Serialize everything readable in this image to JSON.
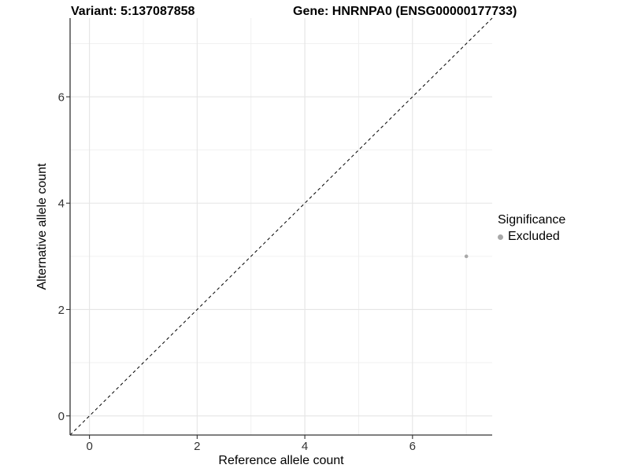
{
  "chart_data": {
    "type": "scatter",
    "title_left": "Variant: 5:137087858",
    "title_right": "Gene: HNRNPA0 (ENSG00000177733)",
    "xlabel": "Reference allele count",
    "ylabel": "Alternative allele count",
    "xlim": [
      -0.36,
      7.48
    ],
    "ylim": [
      -0.36,
      7.48
    ],
    "x_ticks": [
      0,
      2,
      4,
      6
    ],
    "y_ticks": [
      0,
      2,
      4,
      6
    ],
    "minor_grid_x": [
      1,
      3,
      5,
      7
    ],
    "minor_grid_y": [
      1,
      3,
      5,
      7
    ],
    "grid_on": true,
    "identity_line": {
      "style": "dashed",
      "color": "#000000",
      "from": -0.36,
      "to": 7.48
    },
    "series": [
      {
        "name": "Excluded",
        "color": "#a8a8a8",
        "points": [
          {
            "x": 7,
            "y": 3
          }
        ]
      }
    ],
    "legend": {
      "title": "Significance",
      "position": "right",
      "items": [
        {
          "label": "Excluded",
          "color": "#a8a8a8"
        }
      ]
    },
    "colors": {
      "grid_major": "#e5e5e5",
      "grid_minor": "#f0f0f0",
      "axis_line": "#333333",
      "tick_label": "#333333",
      "text": "#000000",
      "background": "#ffffff"
    }
  }
}
